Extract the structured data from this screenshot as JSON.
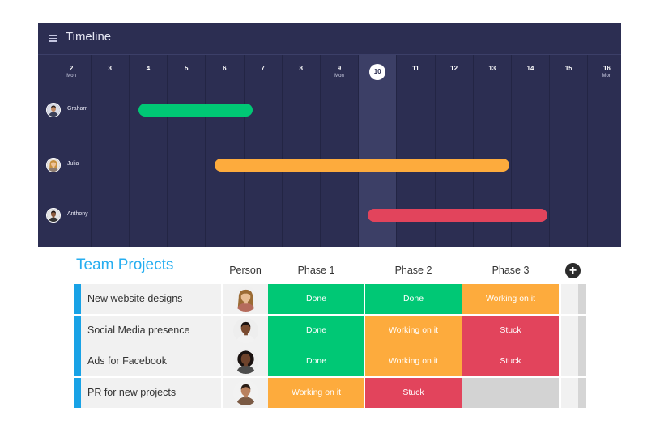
{
  "colors": {
    "done": "#00c875",
    "working": "#fdab3d",
    "stuck": "#e2445c",
    "empty": "#d3d3d3",
    "timeline_bg": "#2c2e52",
    "accent_blue": "#18a2e6"
  },
  "timeline": {
    "title": "Timeline",
    "menu_icon": "hamburger-menu-icon",
    "today": "10",
    "days": [
      {
        "num": "2",
        "sub": "Mon"
      },
      {
        "num": "3",
        "sub": ""
      },
      {
        "num": "4",
        "sub": ""
      },
      {
        "num": "5",
        "sub": ""
      },
      {
        "num": "6",
        "sub": ""
      },
      {
        "num": "7",
        "sub": ""
      },
      {
        "num": "8",
        "sub": ""
      },
      {
        "num": "9",
        "sub": "Mon"
      },
      {
        "num": "10",
        "sub": ""
      },
      {
        "num": "11",
        "sub": ""
      },
      {
        "num": "12",
        "sub": ""
      },
      {
        "num": "13",
        "sub": ""
      },
      {
        "num": "14",
        "sub": ""
      },
      {
        "num": "15",
        "sub": ""
      },
      {
        "num": "16",
        "sub": "Mon"
      }
    ],
    "people": [
      {
        "name": "Graham",
        "start_day": 4,
        "end_day": 7,
        "color": "#00c875"
      },
      {
        "name": "Julia",
        "start_day": 6,
        "end_day": 13.7,
        "color": "#fdab3d"
      },
      {
        "name": "Anthony",
        "start_day": 10,
        "end_day": 14.7,
        "color": "#e2445c"
      }
    ]
  },
  "board": {
    "title": "Team Projects",
    "columns": {
      "person": "Person",
      "phase1": "Phase 1",
      "phase2": "Phase 2",
      "phase3": "Phase 3"
    },
    "add_column_icon": "plus-circle-icon",
    "rows": [
      {
        "name": "New website designs",
        "phase1": "Done",
        "phase2": "Done",
        "phase3": "Working on it"
      },
      {
        "name": "Social Media presence",
        "phase1": "Done",
        "phase2": "Working on it",
        "phase3": "Stuck"
      },
      {
        "name": "Ads for Facebook",
        "phase1": "Done",
        "phase2": "Working on it",
        "phase3": "Stuck"
      },
      {
        "name": "PR for new projects",
        "phase1": "Working on it",
        "phase2": "Stuck",
        "phase3": ""
      }
    ]
  }
}
